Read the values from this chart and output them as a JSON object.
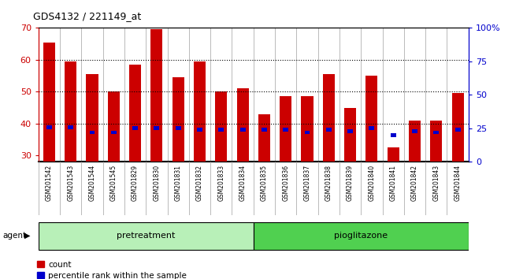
{
  "title": "GDS4132 / 221149_at",
  "samples": [
    "GSM201542",
    "GSM201543",
    "GSM201544",
    "GSM201545",
    "GSM201829",
    "GSM201830",
    "GSM201831",
    "GSM201832",
    "GSM201833",
    "GSM201834",
    "GSM201835",
    "GSM201836",
    "GSM201837",
    "GSM201838",
    "GSM201839",
    "GSM201840",
    "GSM201841",
    "GSM201842",
    "GSM201843",
    "GSM201844"
  ],
  "counts": [
    65.5,
    59.5,
    55.5,
    50.0,
    58.5,
    69.5,
    54.5,
    59.5,
    50.0,
    51.0,
    43.0,
    48.5,
    48.5,
    55.5,
    45.0,
    55.0,
    32.5,
    41.0,
    41.0,
    49.5
  ],
  "percentile_ranks": [
    26,
    26,
    22,
    22,
    25,
    25,
    25,
    24,
    24,
    24,
    24,
    24,
    22,
    24,
    23,
    25,
    20,
    23,
    22,
    24
  ],
  "pretreatment_count": 10,
  "pioglitazone_count": 10,
  "ylim_left": [
    28,
    70
  ],
  "ylim_right": [
    0,
    100
  ],
  "yticks_left": [
    30,
    40,
    50,
    60,
    70
  ],
  "yticks_right": [
    0,
    25,
    50,
    75,
    100
  ],
  "ytick_labels_right": [
    "0",
    "25",
    "50",
    "75",
    "100%"
  ],
  "bar_color_count": "#cc0000",
  "bar_color_pct": "#0000cc",
  "plot_bg_color": "#ffffff",
  "tick_bg_color": "#c8c8c8",
  "pretreatment_color": "#b8f0b8",
  "pioglitazone_color": "#50d050",
  "legend_count": "count",
  "legend_pct": "percentile rank within the sample",
  "agent_label": "agent"
}
